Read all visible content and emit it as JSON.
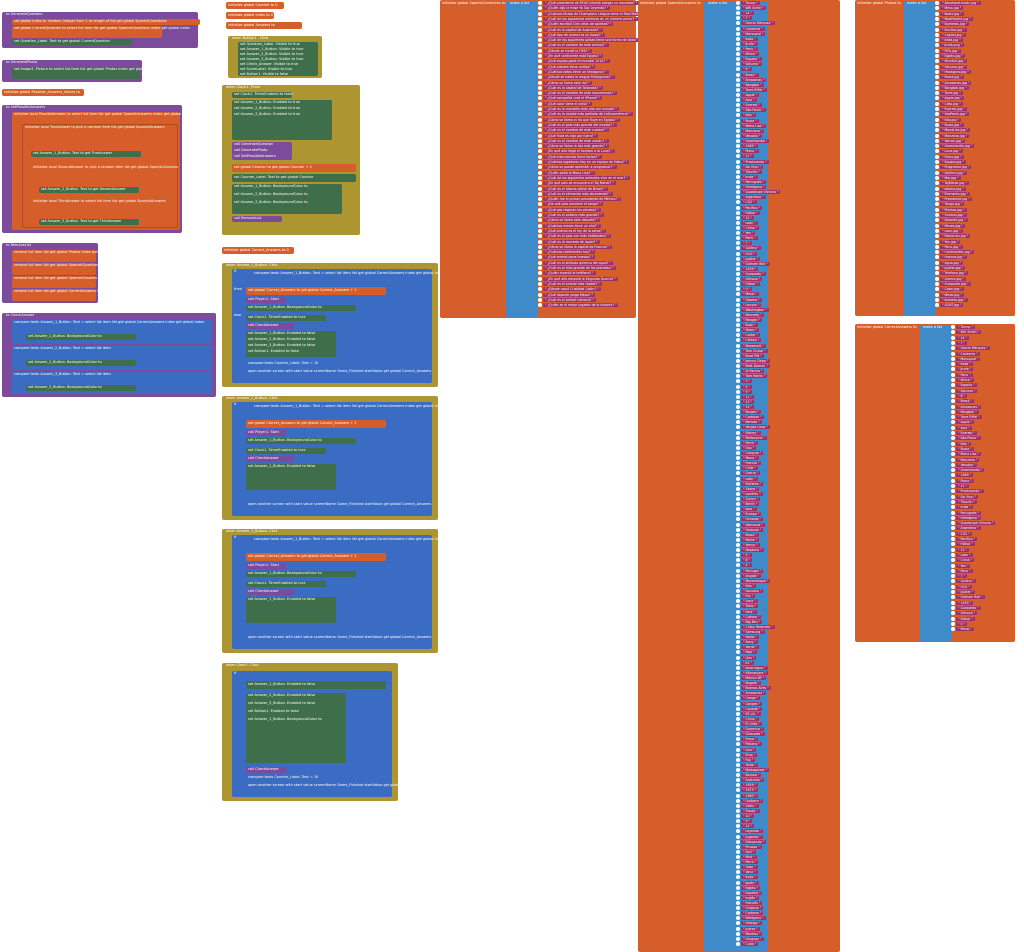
{
  "canvas": {
    "title": "Blocks Editor Workspace"
  },
  "colors": {
    "orange": "#d65e2a",
    "purple": "#7c4b9c",
    "olive": "#ad9631",
    "sky": "#3f8ac9",
    "pink": "#a03167",
    "green": "#5a9c3a"
  },
  "left_procedures": {
    "p1_header": "to GenerateQuestion",
    "p1_lines": [
      "set global index to",
      "random integer from 1 to length of list get global SpanishQuestions",
      "set global CurrentQuestion to select list item list get global SpanishQuestions index get global index",
      "set Question_Label. Text to get global CurrentQuestion"
    ],
    "p2_header": "to GeneratePhoto",
    "p2_lines": [
      "set Image1. Picture to select list item list get global Photos index get global index"
    ],
    "p3_header": "initialize global Possible_Answers_Values to",
    "p4_header": "to SetPossibleAnswers",
    "p4_lines": [
      "initialize local PossibleAnswer to select list item list get global SpanishAnswers index get global index",
      "initialize local TrueAnswer to pick a random item list get global SpanishAnswers",
      "set Answer_1_Button. Text to get TrueAnswer",
      "initialize local SecondAnswer to pick a random item list get global SpanishAnswers",
      "set Answer_2_Button. Text to get SecondAnswer",
      "initialize local ThirdAnswer to select list item list get global SpanishAnswers",
      "set Answer_3_Button. Text to get ThirdAnswer"
    ],
    "p5_header": "to RemoveList",
    "p5_lines": [
      "remove list item list get global Photos index get global index",
      "remove list item list get global SpanishQuestions index get global index",
      "remove list item list get global SpanishAnswers index get global index",
      "remove list item list get global CorrectAnswers index get global index"
    ],
    "p6_header": "to CheckAnswer",
    "p6_lines": [
      "compare texts Answer_1_Button. Text = select list item list get global CorrectAnswers index get global index",
      "set Answer_1_Button. BackgroundColor to",
      "compare texts Answer_2_Button. Text = select list item",
      "set Answer_2_Button. BackgroundColor to",
      "compare texts Answer_3_Button. Text = select list item",
      "set Answer_3_Button. BackgroundColor to"
    ]
  },
  "middle_blocks": {
    "g1": "initialize global Counter to 0",
    "g2": "initialize global index to 0",
    "g3": "initialize global Answers to",
    "e1_header": "when Button1 . Click",
    "e1_lines": [
      "set Question_Label. Visible to true",
      "set Answer_1_Button. Visible to true",
      "set Answer_2_Button. Visible to true",
      "set Answer_3_Button. Visible to true",
      "set Check_Answer. Visible to true",
      "set ScoreLabel. Visible to true",
      "set Button1. Visible to false",
      "call GenerateQuestion",
      "call GeneratePhoto",
      "call SetPossibleAnswers"
    ],
    "e2_header": "when Clock1. Timer",
    "e2_lines": [
      "set Clock1. TimerEnabled to false",
      "set Answer_1_Button. Enabled to true",
      "set Answer_2_Button. Enabled to true",
      "set Answer_3_Button. Enabled to true",
      "call GenerateQuestion",
      "call GeneratePhoto",
      "call SetPossibleAnswers",
      "set global Counter to get global Counter + 1",
      "set Counter_Label. Text to get global Counter",
      "set Answer_1_Button. BackgroundColor to",
      "set Answer_2_Button. BackgroundColor to",
      "set Answer_3_Button. BackgroundColor to",
      "call RemoveList"
    ],
    "g4": "initialize global Correct_Answers to 0",
    "e3_header": "when Answer_1_Button. Click",
    "e4_header": "when Answer_2_Button. Click",
    "e5_header": "when Answer_3_Button. Click",
    "e6_header": "when Clear1. Click",
    "answer_lines": [
      "compare texts Answer_1_Button. Text = select list item list get global CorrectAnswers index get global index",
      "set global Correct_Answers to get global Correct_Answers + 1",
      "call Player1. Start",
      "set Answer_1_Button. BackgroundColor to",
      "set Clock1. TimerEnabled to true",
      "call CheckAnswer",
      "set Answer_1_Button. Enabled to false",
      "set Answer_2_Button. Enabled to false",
      "set Answer_3_Button. Enabled to false",
      "set Button1. Enabled to false",
      "compare texts Counter_Label. Text = 10",
      "open another screen with start value screenName Game_Finished startValue get global Correct_Answers"
    ],
    "else_label": "else",
    "then_label": "then",
    "do_label": "do",
    "if_label": "if"
  },
  "spanish_questions": {
    "header": "initialize global SpanishQuestions to",
    "make_list": "make a list",
    "items": [
      "¿Qué presidente de EEUU intentó alargar su mandato?",
      "¿Quién dijo la frase Yo Soy Leyenda?",
      "¿Cuántos títulos de Champions League tiene el Real Madrid?",
      "¿Cuál de los siguientes números es un número primo?",
      "¿Quién escribió Cien años de soledad?",
      "¿Cuál es la capital de Australia?",
      "¿Qué tipo de animal es un Koala?",
      "¿Cuál de los siguientes países tiene una forma de bota?",
      "¿Cuál es el nombre de este animal?",
      "¿Dónde se fundó la FIFA?",
      "¿En qué continente está Egipto?",
      "¿Qué equipo ganó el mundial 2010?",
      "¿Qué planeta tiene anillos?",
      "¿Cuántos lados tiene un hexágono?",
      "¿Dónde se habla la lengua Portuguesa?",
      "¿Cómo se llama este río?",
      "¿Cuál es la capital de Tailandia?",
      "¿Cuál es el nombre de este monumento?",
      "¿Qué compañía creó el iPhone?",
      "¿Qué color tiene el cielo?",
      "¿Cuál es la montaña más alta del mundo?",
      "¿Cuál es la ciudad más poblada de Latinoamérica?",
      "¿Cómo se llama el río que fluye en Egipto?",
      "¿Cuál es el país más grande del mundo?",
      "¿Cuál es el nombre de este cuadro?",
      "¿Qué fruta es roja por fuera?",
      "¿Cuál es el nombre de este volcán?",
      "¿Cómo se llama la isla más grande?",
      "¿En qué año llegó el hombre a la Luna?",
      "¿Qué instrumento tiene teclas?",
      "¿Cuántos jugadores hay en un equipo de fútbol?",
      "¿Cómo se puede aprender a programar?",
      "¿Quién pintó la Mona Lisa?",
      "¿Cuál de los siguientes animales vive en el mar?",
      "¿En qué país se encuentra el Taj Mahal?",
      "¿Cuál es el idioma oficial de Brasil?",
      "¿Cuál es el elemento más abundante?",
      "¿Quién fue el primer presidente de México?",
      "¿De qué país proviene el tango?",
      "¿Qué gas respiran las plantas?",
      "¿Cuál es el océano más grande?",
      "¿Cómo se llama este deporte?",
      "¿Cuántos meses tiene un año?",
      "¿Qué animal es el rey de la selva?",
      "¿Cuál es el país con más habitantes?",
      "¿Cuál es la moneda de Japón?",
      "¿Cómo se llama la capital de Francia?",
      "¿Cuántos continentes hay?",
      "¿Qué animal pone huevos?",
      "¿Cuál es el símbolo químico del agua?",
      "¿Cuál es el más grande de los planetas?",
      "¿Quién inventó el teléfono?",
      "¿En qué año empezó la Segunda Guerra?",
      "¿Cuál es el animal más rápido?",
      "¿Dónde nació Cristóbal Colón?",
      "¿Qué deporte juega Messi?",
      "¿Cuál es el primer número?",
      "¿Quién es el mejor jugador de la historia?"
    ]
  },
  "spanish_answers": {
    "header": "initialize global SpanishAnswers to",
    "make_list": "make a list",
    "items": [
      "Trump",
      "Will Smith",
      "14",
      "7",
      "García Márquez",
      "Canberra",
      "Marsupial",
      "Italia",
      "Jirafa",
      "París",
      "África",
      "España",
      "Saturno",
      "6",
      "Brasil",
      "Amazonas",
      "Bangkok",
      "Torre Eiffel",
      "Apple",
      "Azul",
      "Everest",
      "São Paulo",
      "Nilo",
      "Rusia",
      "Mona Lisa",
      "Manzana",
      "Vesubio",
      "Groenlandia",
      "1969",
      "Piano",
      "11",
      "Practicando",
      "Da Vinci",
      "Tiburón",
      "India",
      "Portugués",
      "Hidrógeno",
      "Guadalupe Victoria",
      "Argentina",
      "CO2",
      "Pacífico",
      "Fútbol",
      "12",
      "León",
      "China",
      "Yen",
      "París",
      "7",
      "Gallina",
      "H2O",
      "Júpiter",
      "Graham Bell",
      "1939",
      "Guepardo",
      "Génova",
      "Fútbol",
      "0",
      "Messi",
      "Obama",
      "Lincoln",
      "Washington",
      "Kennedy",
      "Reagan",
      "Bush",
      "Nixon",
      "Carter",
      "Clinton",
      "Roosevelt",
      "Tom Cruise",
      "Brad Pitt",
      "Johnny Depp",
      "Matt Damon",
      "Al Pacino",
      "Tom Hanks",
      "3",
      "5",
      "9",
      "11",
      "13",
      "15",
      "Borges",
      "Cortázar",
      "Neruda",
      "Vargas Llosa",
      "Sídney",
      "Melbourne",
      "Perth",
      "Oso",
      "Canguro",
      "Mono",
      "Francia",
      "Chile",
      "Grecia",
      "León",
      "Elefante",
      "Zebra",
      "Londres",
      "Zúrich",
      "Berlín",
      "Asia",
      "Europa",
      "Oceanía",
      "Alemania",
      "Holanda",
      "Brasil",
      "Marte",
      "Venus",
      "Neptuno",
      "5",
      "8",
      "4",
      "Portugal",
      "Angola",
      "Mozambique",
      "Nilo",
      "Danubio",
      "Rin",
      "Lima",
      "Tokio",
      "Seúl",
      "Coliseo",
      "Big Ben",
      "Cristo Redentor",
      "Samsung",
      "Nokia",
      "Sony",
      "Verde",
      "Rojo",
      "Gris",
      "K2",
      "Aconcagua",
      "Kilimanjaro",
      "México DF",
      "Bogotá",
      "Buenos Aires",
      "Amazonas",
      "Congo",
      "Ganges",
      "Canadá",
      "EE.UU.",
      "China",
      "El Grito",
      "Guernica",
      "Girasoles",
      "Fresa",
      "Plátano",
      "Uva",
      "Etna",
      "Fuji",
      "Teide",
      "Madagascar",
      "Borneo",
      "Australia",
      "1959",
      "1975",
      "1980",
      "Guitarra",
      "Violín",
      "Flauta",
      "10",
      "9",
      "12",
      "Leyendo",
      "Jugando",
      "Dibujando",
      "Picasso",
      "Dalí",
      "Miró",
      "Perro",
      "Gato",
      "Vaca",
      "Italia",
      "Japón",
      "Egipto",
      "Español",
      "Inglés",
      "Francés",
      "Oxígeno",
      "Carbono",
      "Nitrógeno",
      "Hidalgo",
      "Juárez",
      "Morelos",
      "Uruguay",
      "Cuba"
    ]
  },
  "photos": {
    "header": "initialize global Photos to",
    "make_list": "make a list",
    "items": [
      "AbrahamLincoln.jpg",
      "Mesa.jpg",
      "Koala.jpg",
      "RealMadrid.jpg",
      "Numeros.jpg",
      "Escritor.jpg",
      "Capital.jpg",
      "Italia.jpg",
      "Jirafa.png",
      "FIFA.jpg",
      "Egipto.jpg",
      "Mundial.jpg",
      "Saturno.jpg",
      "Hexagono.jpg",
      "Brasil.jpg",
      "Amazonas.jpg",
      "Bangkok.jpg",
      "Torre.jpg",
      "Apple.jpg",
      "Cielo.jpg",
      "Everest.jpg",
      "SaoPaulo.jpg",
      "Nilo.jpg",
      "Rusia.jpg",
      "MonaLisa.jpg",
      "Manzana.jpg",
      "Volcan.jpg",
      "Groenlandia.jpg",
      "Luna.jpg",
      "Piano.jpg",
      "Equipo.jpg",
      "Programar.jpg",
      "DaVinci.jpg",
      "Mar.jpg",
      "TajMahal.jpg",
      "Idioma.jpg",
      "Elemento.jpg",
      "Presidente.jpg",
      "Tango.jpg",
      "Plantas.jpg",
      "Oceano.jpg",
      "Deporte.jpg",
      "Meses.jpg",
      "Leon.jpg",
      "Poblacion.jpg",
      "Yen.jpg",
      "Paris.jpg",
      "Continentes.jpg",
      "Huevos.jpg",
      "Agua.jpg",
      "Jupiter.jpg",
      "Telefono.jpg",
      "Guerra.jpg",
      "Guepardo.jpg",
      "Colon.jpg",
      "Messi.jpg",
      "Numero.jpg",
      "GOAT.jpg"
    ]
  },
  "correct_answers": {
    "header": "initialize global CorrectAnswers to",
    "make_list": "make a list",
    "items": [
      "Trump",
      "Will Smith",
      "14",
      "7",
      "García Márquez",
      "Canberra",
      "Marsupial",
      "Italia",
      "Jirafa",
      "París",
      "África",
      "España",
      "Saturno",
      "6",
      "Brasil",
      "Amazonas",
      "Bangkok",
      "Torre Eiffel",
      "Apple",
      "Azul",
      "Everest",
      "São Paulo",
      "Nilo",
      "Rusia",
      "Mona Lisa",
      "Manzana",
      "Vesubio",
      "Groenlandia",
      "1969",
      "Piano",
      "11",
      "Practicando",
      "Da Vinci",
      "Tiburón",
      "India",
      "Portugués",
      "Hidrógeno",
      "Guadalupe Victoria",
      "Argentina",
      "CO2",
      "Pacífico",
      "Fútbol",
      "12",
      "León",
      "China",
      "Yen",
      "París",
      "7",
      "Gallina",
      "H2O",
      "Júpiter",
      "Graham Bell",
      "1939",
      "Guepardo",
      "Génova",
      "Fútbol",
      "0",
      "Messi"
    ]
  }
}
